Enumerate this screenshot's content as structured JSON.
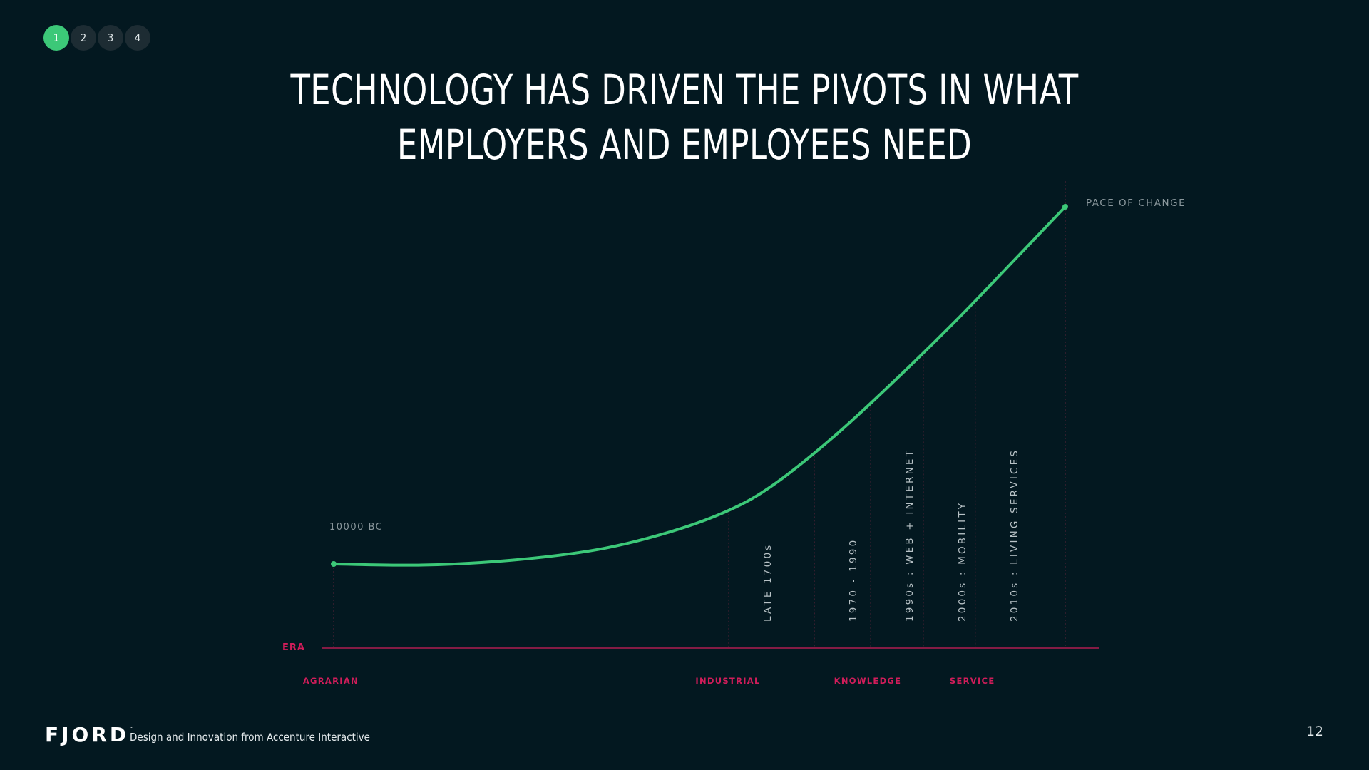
{
  "pager": [
    {
      "label": "1",
      "active": true
    },
    {
      "label": "2",
      "active": false
    },
    {
      "label": "3",
      "active": false
    },
    {
      "label": "4",
      "active": false
    }
  ],
  "title_lines": [
    "Technology has driven the pivots in what",
    "employers and employees need"
  ],
  "colors": {
    "background": "#031820",
    "curve": "#3cc878",
    "era_accent": "#d11d5a",
    "muted_text": "#8a979c",
    "divider": "#5a2238"
  },
  "chart_data": {
    "type": "line",
    "title": "Technology has driven the pivots in what employers and employees need",
    "ylabel": "PACE OF CHANGE",
    "xlabel": "ERA",
    "start_label": "10000 BC",
    "curve": {
      "x": [
        0,
        0.12,
        0.24,
        0.36,
        0.46,
        0.54,
        0.6,
        0.68,
        0.76,
        0.85,
        0.93,
        1.0
      ],
      "y": [
        0.0,
        -0.003,
        0.01,
        0.04,
        0.09,
        0.15,
        0.22,
        0.35,
        0.5,
        0.68,
        0.85,
        1.0
      ]
    },
    "milestones": [
      {
        "label": "LATE  1700s",
        "x": 0.54
      },
      {
        "label": "1970 - 1990",
        "x": 0.657
      },
      {
        "label": "1990s : WEB  +  INTERNET",
        "x": 0.734
      },
      {
        "label": "2000s : MOBILITY",
        "x": 0.806
      },
      {
        "label": "2010s : LIVING  SERVICES",
        "x": 0.877
      }
    ],
    "eras": [
      {
        "label": "AGRARIAN",
        "x": -0.004
      },
      {
        "label": "INDUSTRIAL",
        "x": 0.539
      },
      {
        "label": "KNOWLEDGE",
        "x": 0.73
      },
      {
        "label": "SERVICE",
        "x": 0.873
      }
    ]
  },
  "footer": {
    "logo": "FJORD",
    "logo_mark": "™",
    "tagline": "Design and Innovation from Accenture Interactive",
    "page_number": "12"
  }
}
